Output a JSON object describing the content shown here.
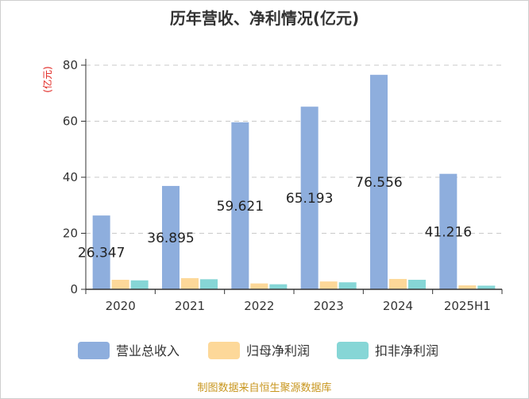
{
  "chart_data": {
    "type": "bar",
    "title": "历年营收、净利情况(亿元)",
    "ylabel": "(亿元)",
    "xlabel": "",
    "ylim": [
      0,
      80
    ],
    "yticks": [
      0,
      20,
      40,
      60,
      80
    ],
    "categories": [
      "2020",
      "2021",
      "2022",
      "2023",
      "2024",
      "2025H1"
    ],
    "series": [
      {
        "name": "营业总收入",
        "color": "#8eaedd",
        "values": [
          26.347,
          36.895,
          59.621,
          65.193,
          76.556,
          41.216
        ],
        "labels": [
          "26.347",
          "36.895",
          "59.621",
          "65.193",
          "76.556",
          "41.216"
        ]
      },
      {
        "name": "归母净利润",
        "color": "#fdd899",
        "values": [
          3.4,
          4.0,
          2.1,
          2.8,
          3.7,
          1.4
        ]
      },
      {
        "name": "扣非净利润",
        "color": "#86d6d6",
        "values": [
          3.2,
          3.6,
          1.8,
          2.5,
          3.4,
          1.3
        ]
      }
    ],
    "grid": true,
    "legend_position": "bottom"
  },
  "source_note": "制图数据来自恒生聚源数据库"
}
